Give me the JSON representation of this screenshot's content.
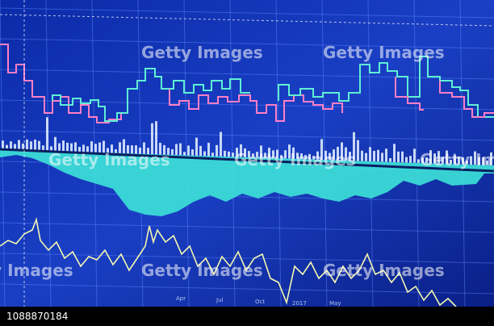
{
  "watermark": "Getty Images",
  "image_id": "1088870184",
  "axis_labels": [
    "Apr",
    "Jul",
    "Oct",
    "2017",
    "May"
  ]
}
